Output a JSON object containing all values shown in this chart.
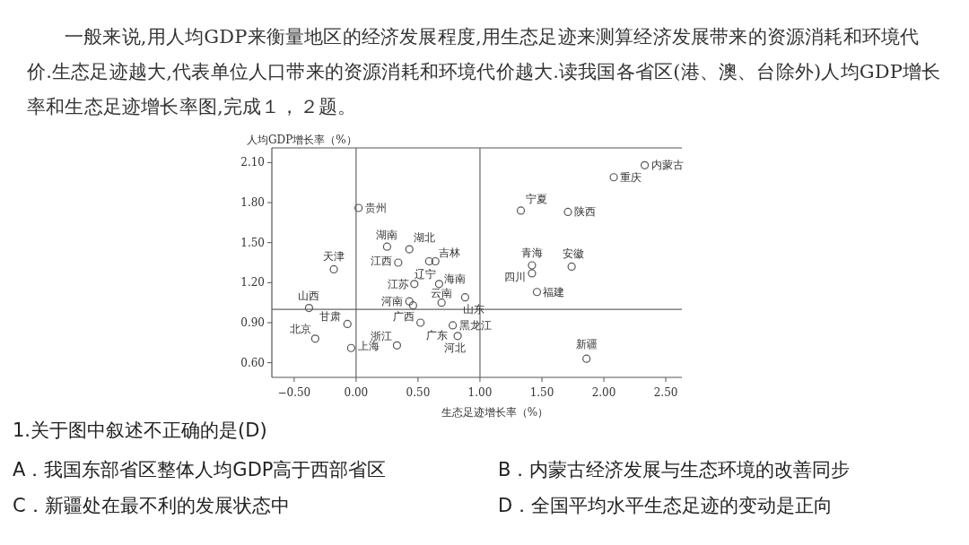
{
  "chart_data": {
    "type": "scatter",
    "title": "一般来说,用人均GDP来衡量地区的经济发展程度,用生态足迹来测算经济发展带来的资源消耗和环境代价.生态足迹越大,代表单位人口带来的资源消耗和环境代价越大.读我国各省区(港、澳、台除外)人均GDP增长率和生态足迹增长率图,完成１，２题。",
    "xlabel": "生态足迹增长率（%）",
    "ylabel": "人均GDP增长率（%）",
    "xlim": [
      -0.68,
      2.63
    ],
    "ylim": [
      0.49,
      2.21
    ],
    "xticks": [
      {
        "value": -0.5,
        "label": "−0.50"
      },
      {
        "value": 0,
        "label": "0.00"
      },
      {
        "value": 0.5,
        "label": "0.50"
      },
      {
        "value": 1,
        "label": "1.00"
      },
      {
        "value": 1.5,
        "label": "1.50"
      },
      {
        "value": 2,
        "label": "2.00"
      },
      {
        "value": 2.5,
        "label": "2.50"
      }
    ],
    "yticks": [
      {
        "value": 0.6,
        "label": "0.60"
      },
      {
        "value": 0.9,
        "label": "0.90"
      },
      {
        "value": 1.2,
        "label": "1.20"
      },
      {
        "value": 1.5,
        "label": "1.50"
      },
      {
        "value": 1.8,
        "label": "1.80"
      },
      {
        "value": 2.1,
        "label": "2.10"
      }
    ],
    "ref_lines": [
      {
        "axis": "x",
        "value": 0,
        "color": "#666666"
      },
      {
        "axis": "x",
        "value": 1,
        "color": "#666666"
      },
      {
        "axis": "y",
        "value": 1,
        "color": "#666666"
      }
    ],
    "marker": "circle",
    "grid": false,
    "series": [
      {
        "color": "#555555",
        "x": [
          2.33,
          2.08,
          1.33,
          1.71,
          0.02,
          0.25,
          0.43,
          0.34,
          0.59,
          0.64,
          -0.18,
          0.47,
          0.67,
          0.43,
          0.46,
          0.69,
          0.88,
          -0.38,
          -0.07,
          -0.33,
          -0.04,
          0.52,
          0.33,
          0.78,
          0.82,
          1.42,
          1.42,
          1.74,
          1.46,
          1.86
        ],
        "values": [
          2.08,
          1.99,
          1.74,
          1.73,
          1.76,
          1.47,
          1.45,
          1.35,
          1.36,
          1.36,
          1.3,
          1.19,
          1.19,
          1.06,
          1.03,
          1.05,
          1.09,
          1.01,
          0.89,
          0.78,
          0.71,
          0.9,
          0.73,
          0.88,
          0.8,
          1.33,
          1.27,
          1.32,
          1.13,
          0.63
        ],
        "value_labels": [
          "内蒙古",
          "重庆",
          "宁夏",
          "陕西",
          "贵州",
          "湖南",
          "湖北",
          "江西",
          "辽宁",
          "吉林",
          "天津",
          "江苏",
          "海南",
          "河南",
          null,
          "云南",
          "山东",
          "山西",
          "甘肃",
          "北京",
          "上海",
          "广西",
          "浙江",
          "黑龙江",
          "河北",
          "青海",
          "四川",
          "安徽",
          "福建",
          "新疆"
        ]
      }
    ],
    "annotations": [
      "广东",
      "1.关于图中叙述不正确的是(D)",
      "A．我国东部省区整体人均GDP高于西部省区",
      "B．内蒙古经济发展与生态环境的改善同步",
      "C．新疆处在最不利的发展状态中",
      "D．全国平均水平生态足迹的变动是正向"
    ]
  }
}
